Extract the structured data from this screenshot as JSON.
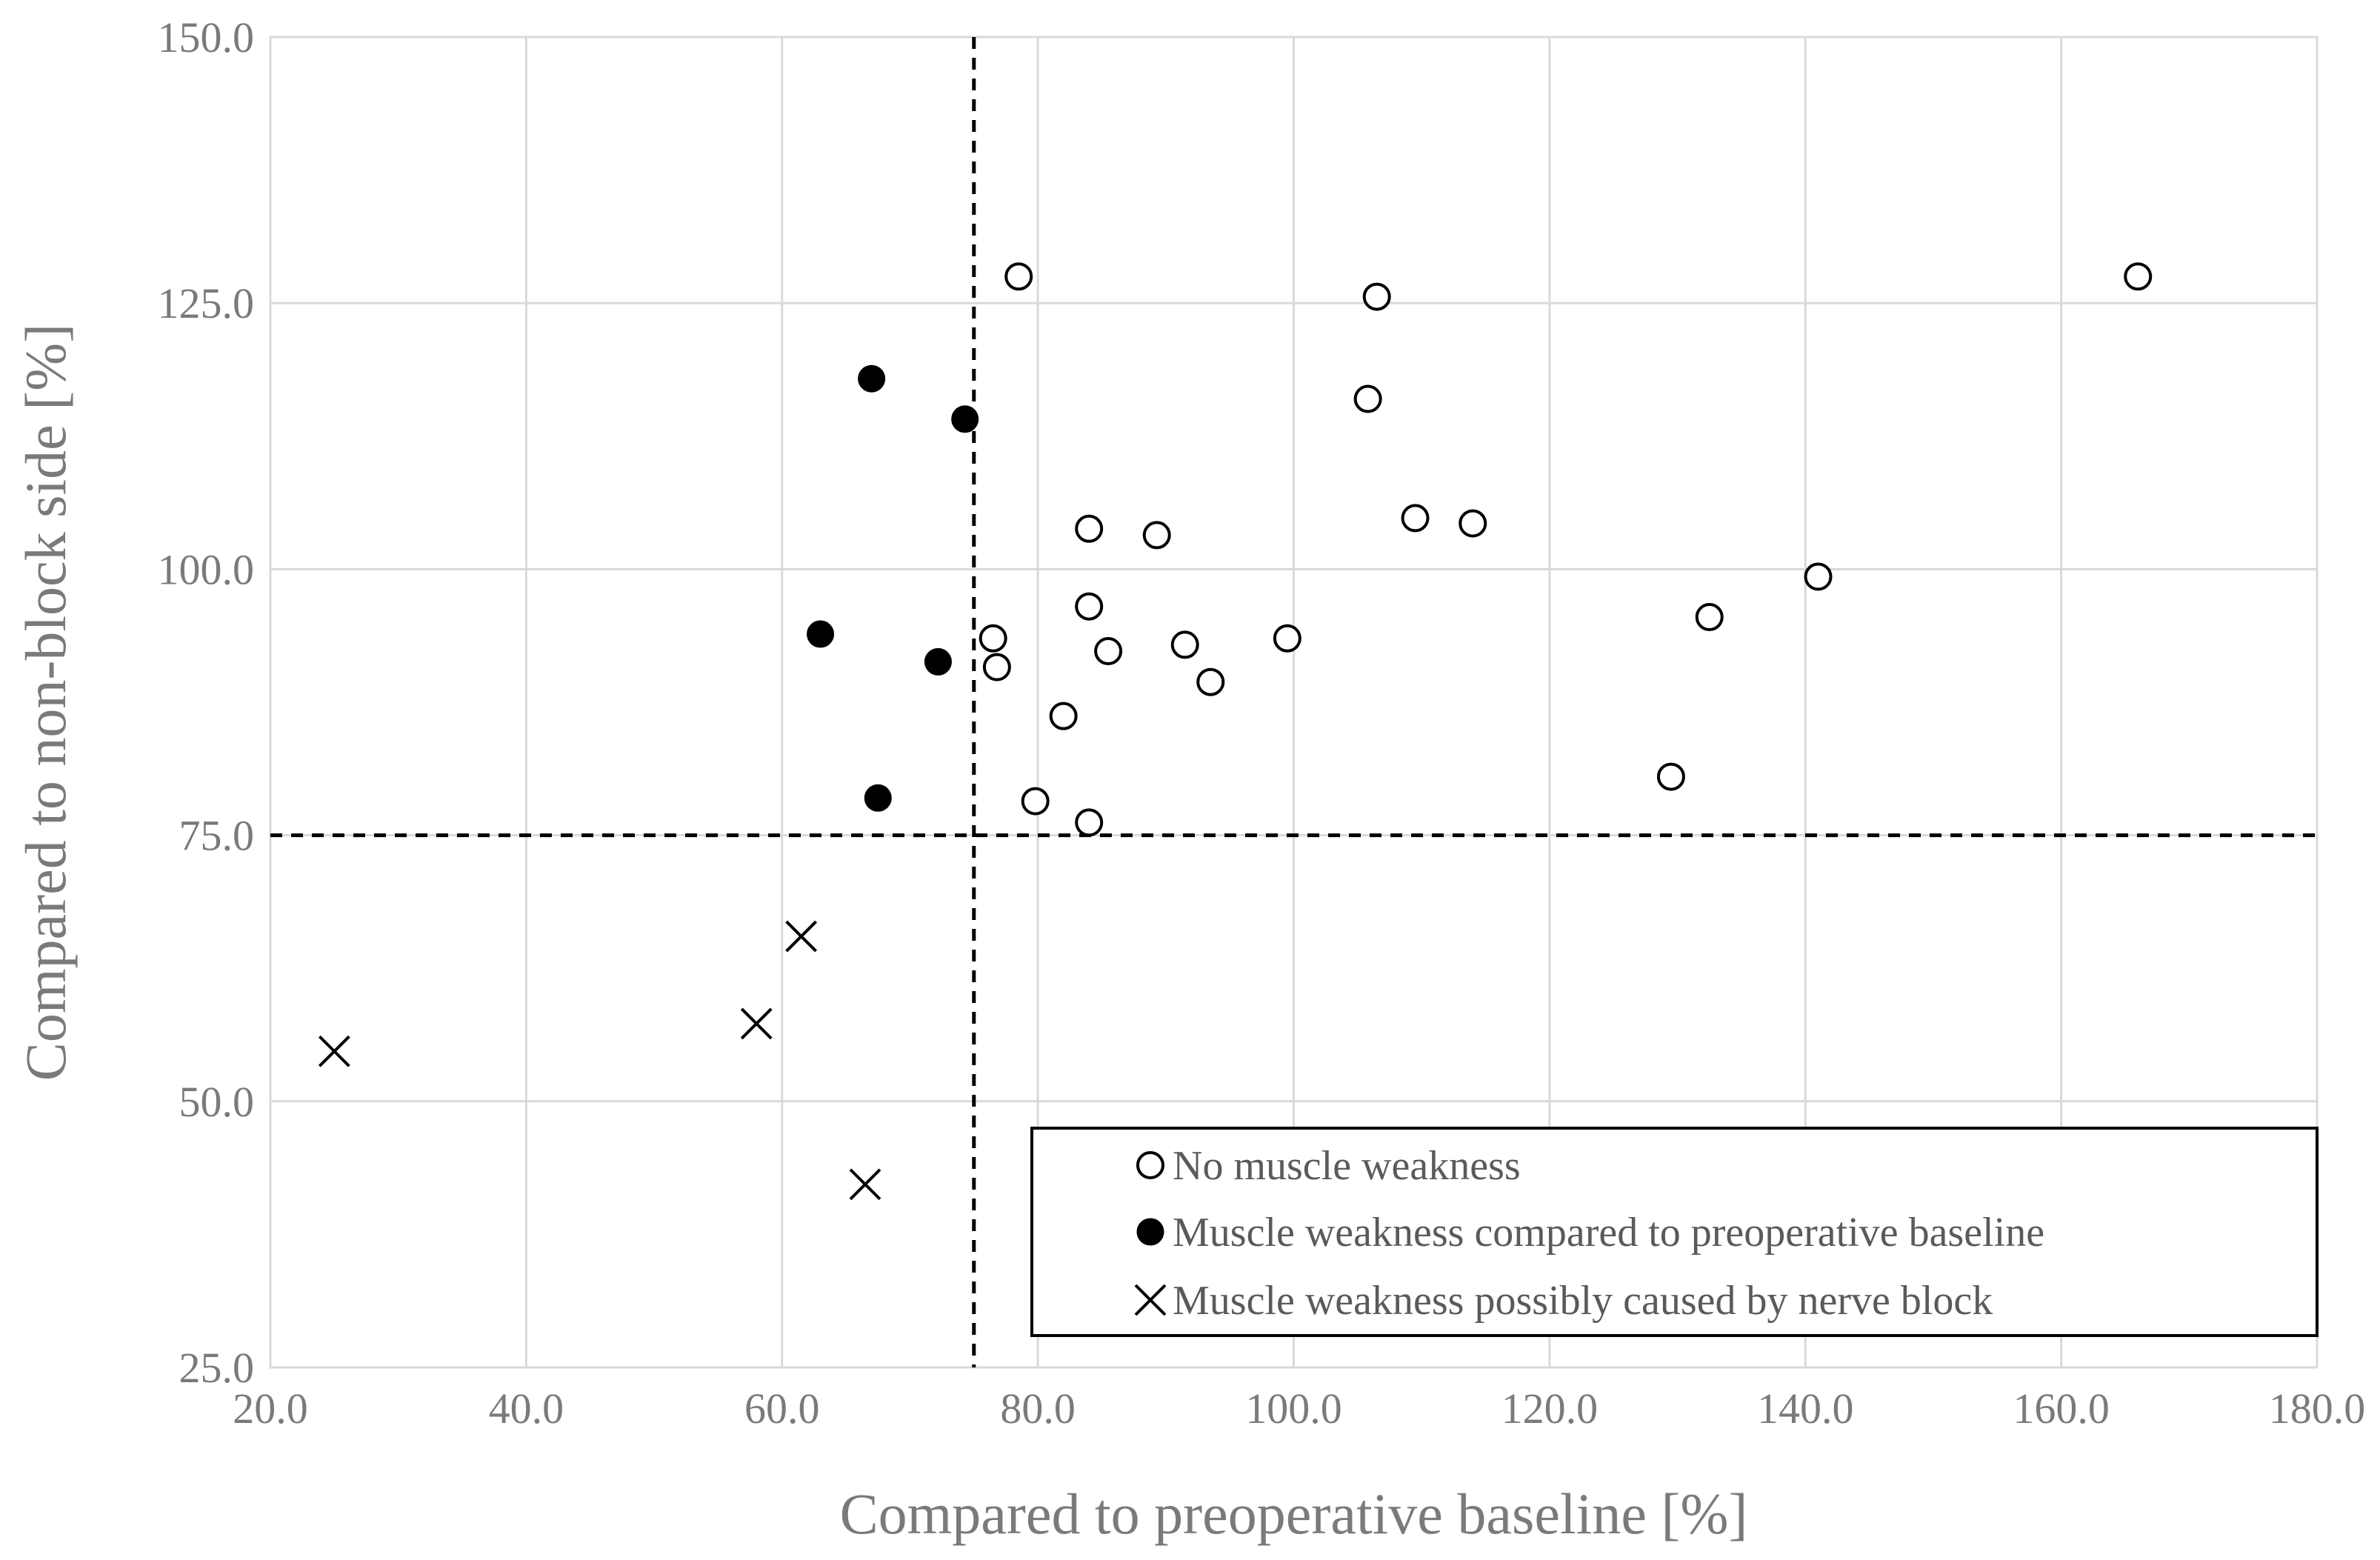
{
  "chart_data": {
    "type": "scatter",
    "title": "",
    "xlabel": "Compared to preoperative baseline [%]",
    "ylabel": "Compared to non-block side [%]",
    "xlim": [
      20.0,
      180.0
    ],
    "ylim": [
      25.0,
      150.0
    ],
    "x_ticks": [
      "20.0",
      "40.0",
      "60.0",
      "80.0",
      "100.0",
      "120.0",
      "140.0",
      "160.0",
      "180.0"
    ],
    "y_ticks": [
      "25.0",
      "50.0",
      "75.0",
      "100.0",
      "125.0",
      "150.0"
    ],
    "grid": true,
    "reference_lines": {
      "x": 75,
      "y": 75,
      "style": "dashed"
    },
    "legend_position": "bottom-right",
    "series": [
      {
        "name": "No muscle weakness",
        "marker": "open-circle",
        "points": [
          [
            78.5,
            127.5
          ],
          [
            106.5,
            125.6
          ],
          [
            105.8,
            116.0
          ],
          [
            109.5,
            104.8
          ],
          [
            114.0,
            104.3
          ],
          [
            84.0,
            103.8
          ],
          [
            89.3,
            103.2
          ],
          [
            84.0,
            96.5
          ],
          [
            76.5,
            93.5
          ],
          [
            76.8,
            90.8
          ],
          [
            85.5,
            92.3
          ],
          [
            91.5,
            92.9
          ],
          [
            99.5,
            93.5
          ],
          [
            93.5,
            89.4
          ],
          [
            82.0,
            86.2
          ],
          [
            79.8,
            78.2
          ],
          [
            84.0,
            76.2
          ],
          [
            166.0,
            127.5
          ],
          [
            141.0,
            99.3
          ],
          [
            132.5,
            95.5
          ],
          [
            129.5,
            80.5
          ]
        ]
      },
      {
        "name": "Muscle weakness compared to preoperative baseline",
        "marker": "filled-circle",
        "points": [
          [
            67.0,
            117.9
          ],
          [
            74.3,
            114.1
          ],
          [
            63.0,
            93.9
          ],
          [
            72.2,
            91.3
          ],
          [
            67.5,
            78.5
          ]
        ]
      },
      {
        "name": "Muscle weakness possibly caused by nerve block",
        "marker": "cross",
        "points": [
          [
            25.0,
            54.7
          ],
          [
            61.5,
            65.5
          ],
          [
            58.0,
            57.3
          ],
          [
            66.5,
            42.2
          ]
        ]
      }
    ]
  }
}
